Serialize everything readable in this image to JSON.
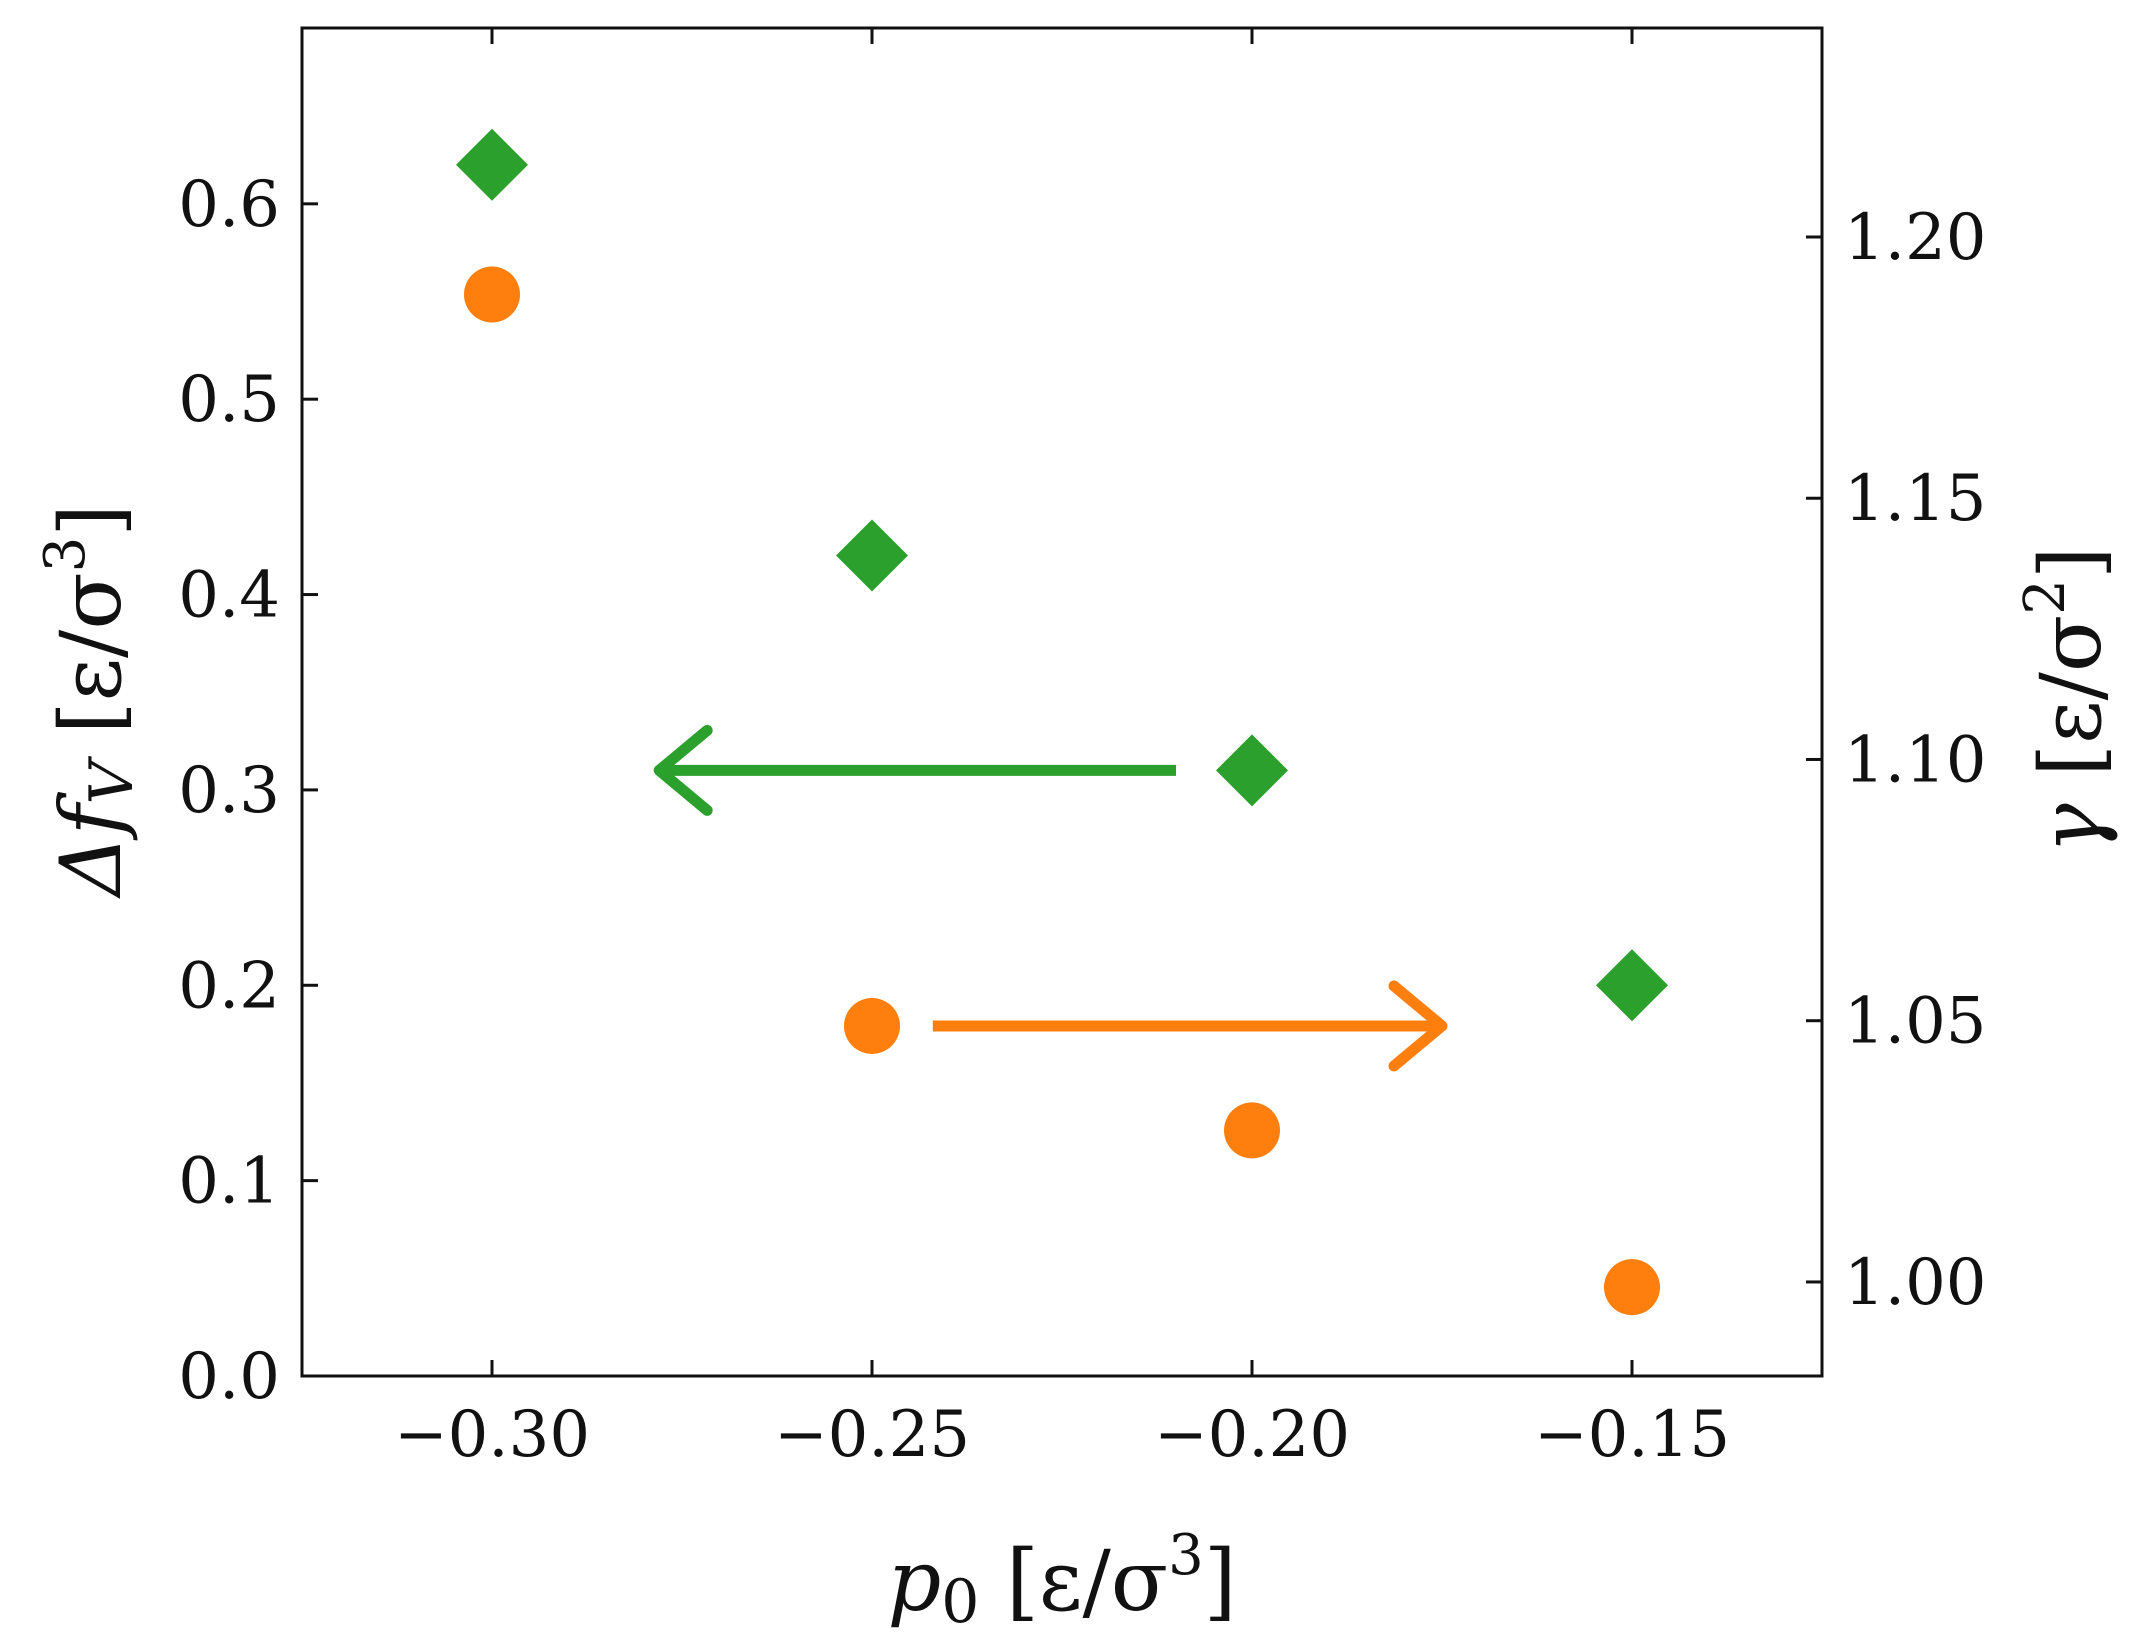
{
  "chart_data": {
    "type": "scatter",
    "x_axis": {
      "label_parts": {
        "main": "p",
        "sub": "0",
        "unit_open": " [ε/σ",
        "sup": "3",
        "unit_close": "]"
      },
      "range": [
        -0.325,
        -0.125
      ],
      "ticks": [
        -0.3,
        -0.25,
        -0.2,
        -0.15
      ],
      "tick_labels": [
        "−0.30",
        "−0.25",
        "−0.20",
        "−0.15"
      ]
    },
    "y_axis_left": {
      "label_parts": {
        "main": "Δf",
        "sub": "V",
        "unit_open": " [ε/σ",
        "sup": "3",
        "unit_close": "]"
      },
      "range": [
        0.0,
        0.69
      ],
      "ticks": [
        0.0,
        0.1,
        0.2,
        0.3,
        0.4,
        0.5,
        0.6
      ],
      "tick_labels": [
        "0.0",
        "0.1",
        "0.2",
        "0.3",
        "0.4",
        "0.5",
        "0.6"
      ]
    },
    "y_axis_right": {
      "label_parts": {
        "main": "γ",
        "unit_open": " [ε/σ",
        "sup": "2",
        "unit_close": "]"
      },
      "range": [
        0.982,
        1.24
      ],
      "ticks": [
        1.0,
        1.05,
        1.1,
        1.15,
        1.2
      ],
      "tick_labels": [
        "1.00",
        "1.05",
        "1.10",
        "1.15",
        "1.20"
      ]
    },
    "series": [
      {
        "axis": "left",
        "marker": "diamond",
        "color": "#2ca02c",
        "x": [
          -0.3,
          -0.25,
          -0.2,
          -0.15
        ],
        "y": [
          0.62,
          0.42,
          0.31,
          0.2
        ]
      },
      {
        "axis": "right",
        "marker": "circle",
        "color": "#ff7f0e",
        "x": [
          -0.3,
          -0.25,
          -0.2,
          -0.15
        ],
        "y": [
          1.189,
          1.049,
          1.029,
          0.999
        ]
      }
    ],
    "annotations": [
      {
        "type": "arrow",
        "direction": "left",
        "color": "#2ca02c",
        "from": [
          -0.21,
          0.31
        ],
        "to": [
          -0.278,
          0.31
        ],
        "axis": "left"
      },
      {
        "type": "arrow",
        "direction": "right",
        "color": "#ff7f0e",
        "from": [
          -0.242,
          1.049
        ],
        "to": [
          -0.175,
          1.049
        ],
        "axis": "right"
      }
    ],
    "grid": false,
    "tick_direction": "in"
  }
}
